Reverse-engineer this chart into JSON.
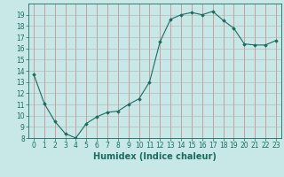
{
  "xlabel": "Humidex (Indice chaleur)",
  "ylabel": "",
  "x": [
    0,
    1,
    2,
    3,
    4,
    5,
    6,
    7,
    8,
    9,
    10,
    11,
    12,
    13,
    14,
    15,
    16,
    17,
    18,
    19,
    20,
    21,
    22,
    23
  ],
  "y": [
    13.7,
    11.1,
    9.5,
    8.4,
    8.0,
    9.3,
    9.9,
    10.3,
    10.4,
    11.0,
    11.5,
    13.0,
    16.6,
    18.6,
    19.0,
    19.2,
    19.0,
    19.3,
    18.5,
    17.8,
    16.4,
    16.3,
    16.3,
    16.7
  ],
  "ylim": [
    8,
    20
  ],
  "xlim": [
    -0.5,
    23.5
  ],
  "yticks": [
    8,
    9,
    10,
    11,
    12,
    13,
    14,
    15,
    16,
    17,
    18,
    19
  ],
  "xticks": [
    0,
    1,
    2,
    3,
    4,
    5,
    6,
    7,
    8,
    9,
    10,
    11,
    12,
    13,
    14,
    15,
    16,
    17,
    18,
    19,
    20,
    21,
    22,
    23
  ],
  "line_color": "#1a6b5e",
  "marker": "D",
  "marker_size": 1.8,
  "bg_color": "#c8e8e8",
  "grid_color": "#b0b0b0",
  "grid_color_minor": "#cc6666",
  "xlabel_fontsize": 7,
  "tick_fontsize": 5.5
}
